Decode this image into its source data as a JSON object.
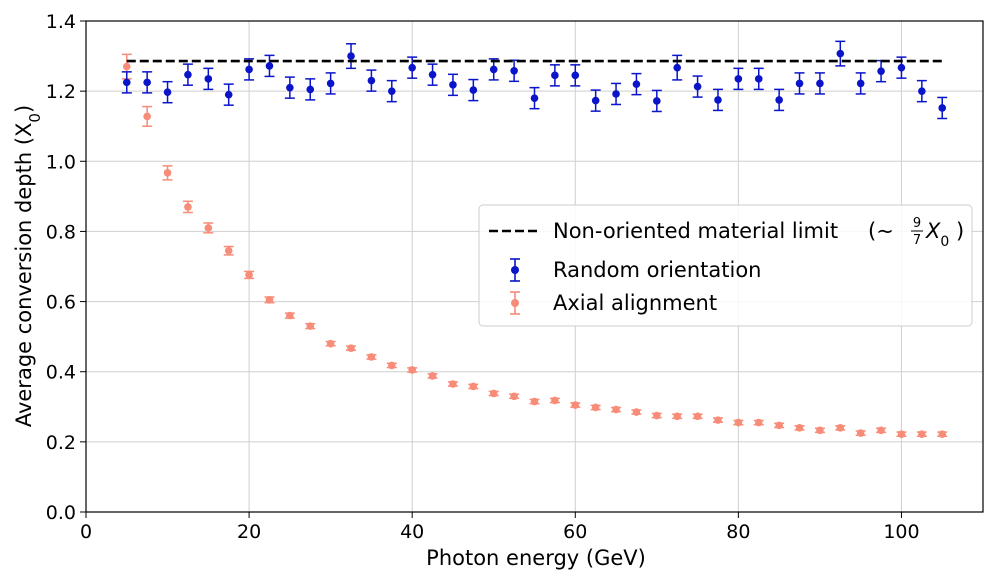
{
  "chart_data": {
    "type": "scatter",
    "xlabel": "Photon energy (GeV)",
    "ylabel": "Average conversion depth (X",
    "ylabel_sub": "0",
    "ylabel_end": ")",
    "xlim": [
      0,
      110
    ],
    "ylim": [
      0.0,
      1.4
    ],
    "xticks": [
      0,
      20,
      40,
      60,
      80,
      100
    ],
    "yticks": [
      0.0,
      0.2,
      0.4,
      0.6,
      0.8,
      1.0,
      1.2,
      1.4
    ],
    "grid": true,
    "legend_position": "center-right",
    "reference_line": {
      "name": "Non-oriented material limit",
      "value": 1.2857,
      "x_range": [
        5,
        105
      ],
      "style": "dashed",
      "color": "#000000",
      "formula_prefix": "(∼",
      "formula_num": "9",
      "formula_den": "7",
      "formula_var": "X",
      "formula_sub": "0",
      "formula_suffix": ")"
    },
    "series": [
      {
        "name": "Random orientation",
        "color": "#0a14c8",
        "x": [
          5,
          7.5,
          10,
          12.5,
          15,
          17.5,
          20,
          22.5,
          25,
          27.5,
          30,
          32.5,
          35,
          37.5,
          40,
          42.5,
          45,
          47.5,
          50,
          52.5,
          55,
          57.5,
          60,
          62.5,
          65,
          67.5,
          70,
          72.5,
          75,
          77.5,
          80,
          82.5,
          85,
          87.5,
          90,
          92.5,
          95,
          97.5,
          100,
          102.5,
          105
        ],
        "y": [
          1.225,
          1.225,
          1.197,
          1.247,
          1.235,
          1.19,
          1.262,
          1.272,
          1.21,
          1.205,
          1.222,
          1.3,
          1.23,
          1.2,
          1.267,
          1.247,
          1.218,
          1.203,
          1.262,
          1.258,
          1.18,
          1.245,
          1.245,
          1.173,
          1.192,
          1.22,
          1.172,
          1.267,
          1.213,
          1.175,
          1.235,
          1.235,
          1.175,
          1.222,
          1.222,
          1.307,
          1.222,
          1.257,
          1.267,
          1.2,
          1.152
        ],
        "err": [
          0.03,
          0.03,
          0.03,
          0.03,
          0.03,
          0.03,
          0.03,
          0.03,
          0.03,
          0.03,
          0.03,
          0.035,
          0.03,
          0.03,
          0.03,
          0.03,
          0.03,
          0.03,
          0.03,
          0.03,
          0.03,
          0.03,
          0.03,
          0.03,
          0.03,
          0.03,
          0.03,
          0.035,
          0.03,
          0.03,
          0.03,
          0.03,
          0.03,
          0.03,
          0.03,
          0.035,
          0.03,
          0.03,
          0.03,
          0.03,
          0.03
        ]
      },
      {
        "name": "Axial alignment",
        "color": "#f78c78",
        "x": [
          5,
          7.5,
          10,
          12.5,
          15,
          17.5,
          20,
          22.5,
          25,
          27.5,
          30,
          32.5,
          35,
          37.5,
          40,
          42.5,
          45,
          47.5,
          50,
          52.5,
          55,
          57.5,
          60,
          62.5,
          65,
          67.5,
          70,
          72.5,
          75,
          77.5,
          80,
          82.5,
          85,
          87.5,
          90,
          92.5,
          95,
          97.5,
          100,
          102.5,
          105
        ],
        "y": [
          1.27,
          1.128,
          0.967,
          0.87,
          0.81,
          0.745,
          0.676,
          0.605,
          0.56,
          0.53,
          0.48,
          0.467,
          0.442,
          0.418,
          0.405,
          0.388,
          0.365,
          0.358,
          0.338,
          0.33,
          0.315,
          0.318,
          0.305,
          0.298,
          0.292,
          0.285,
          0.275,
          0.273,
          0.273,
          0.262,
          0.255,
          0.255,
          0.247,
          0.24,
          0.233,
          0.24,
          0.225,
          0.233,
          0.222,
          0.222,
          0.222
        ],
        "err": [
          0.035,
          0.028,
          0.02,
          0.016,
          0.014,
          0.012,
          0.01,
          0.008,
          0.007,
          0.007,
          0.006,
          0.006,
          0.006,
          0.006,
          0.006,
          0.006,
          0.006,
          0.006,
          0.006,
          0.006,
          0.006,
          0.006,
          0.006,
          0.006,
          0.006,
          0.006,
          0.006,
          0.006,
          0.006,
          0.006,
          0.006,
          0.006,
          0.006,
          0.006,
          0.006,
          0.006,
          0.006,
          0.006,
          0.006,
          0.006,
          0.006
        ]
      }
    ]
  }
}
